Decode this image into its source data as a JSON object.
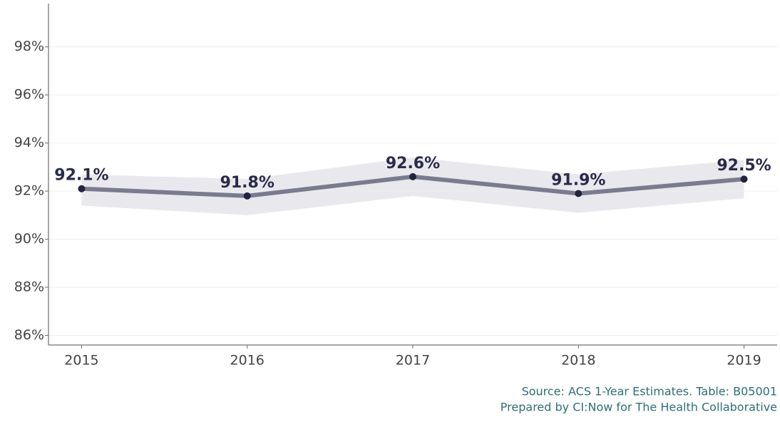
{
  "chart_data": {
    "type": "line",
    "x": [
      2015,
      2016,
      2017,
      2018,
      2019
    ],
    "xlim": [
      2014.8,
      2019.2
    ],
    "xticks": [
      2015,
      2016,
      2017,
      2018,
      2019
    ],
    "series": [
      {
        "color": "#7b7b8f",
        "point_color": "#23233f",
        "values": [
          92.1,
          91.8,
          92.6,
          91.9,
          92.5
        ],
        "value_labels": [
          "92.1%",
          "91.8%",
          "92.6%",
          "91.9%",
          "92.5%"
        ],
        "ci_lower": [
          91.4,
          91.0,
          91.8,
          91.1,
          91.7
        ],
        "ci_upper": [
          92.7,
          92.5,
          93.4,
          92.7,
          93.3
        ],
        "band_color": "#e9e8ed"
      }
    ],
    "ylim": [
      85.6,
      99.8
    ],
    "yticks": [
      {
        "value": 86,
        "label": "86%"
      },
      {
        "value": 88,
        "label": "88%"
      },
      {
        "value": 90,
        "label": "90%"
      },
      {
        "value": 92,
        "label": "92%"
      },
      {
        "value": 94,
        "label": "94%"
      },
      {
        "value": 96,
        "label": "96%"
      },
      {
        "value": 98,
        "label": "98%"
      }
    ],
    "grid": true,
    "caption": [
      "Source: ACS 1-Year Estimates. Table: B05001",
      "Prepared by CI:Now for The Health Collaborative"
    ]
  }
}
